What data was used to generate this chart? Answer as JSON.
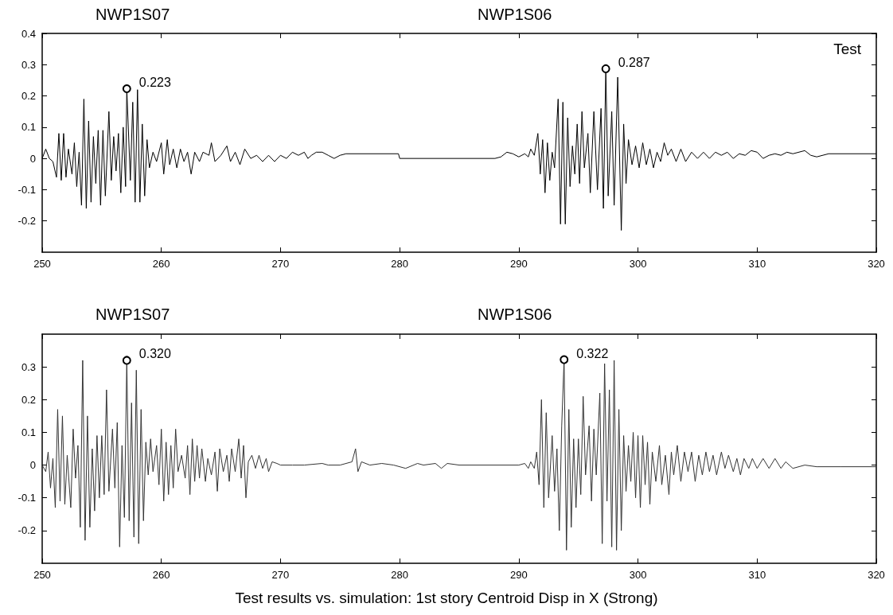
{
  "chart_data": [
    {
      "type": "line",
      "annotations": [
        "NWP1S07",
        "NWP1S06",
        "Test",
        {
          "text": "0.223",
          "x": 257.1,
          "y": 0.223
        },
        {
          "text": "0.287",
          "x": 297.3,
          "y": 0.287
        }
      ],
      "xlim": [
        250,
        320
      ],
      "xticks": [
        250,
        260,
        270,
        280,
        290,
        300,
        310,
        320
      ],
      "ylim": [
        -0.3,
        0.4
      ],
      "yticks": [
        -0.2,
        -0.1,
        0,
        0.1,
        0.2,
        0.3,
        0.4
      ],
      "grid": false,
      "marker": "none",
      "line_style": "solid",
      "series": [
        {
          "color": "#000000",
          "x": [
            250,
            250.3,
            250.6,
            250.9,
            251.2,
            251.4,
            251.6,
            251.8,
            252.0,
            252.2,
            252.5,
            252.7,
            252.9,
            253.1,
            253.3,
            253.5,
            253.7,
            253.9,
            254.1,
            254.3,
            254.5,
            254.7,
            254.9,
            255.1,
            255.3,
            255.6,
            255.8,
            256.0,
            256.2,
            256.4,
            256.6,
            256.8,
            257.0,
            257.1,
            257.4,
            257.6,
            257.8,
            258.0,
            258.2,
            258.4,
            258.6,
            258.8,
            259.0,
            259.3,
            259.6,
            260.0,
            260.2,
            260.5,
            260.7,
            261.0,
            261.3,
            261.6,
            261.9,
            262.2,
            262.5,
            262.8,
            263.2,
            263.5,
            264.0,
            264.2,
            264.5,
            265.0,
            265.5,
            265.8,
            266.2,
            266.6,
            267.0,
            267.5,
            268.0,
            268.5,
            269.0,
            269.5,
            270.0,
            270.5,
            271.0,
            271.5,
            272.0,
            272.3,
            272.6,
            273.0,
            273.5,
            274.0,
            274.5,
            275.0,
            275.5,
            279.9,
            280,
            288,
            288.5,
            289.0,
            289.5,
            290.0,
            290.5,
            290.8,
            291.0,
            291.3,
            291.6,
            291.8,
            292.0,
            292.2,
            292.4,
            292.6,
            292.8,
            293.0,
            293.3,
            293.5,
            293.7,
            293.9,
            294.1,
            294.3,
            294.5,
            294.7,
            294.9,
            295.1,
            295.3,
            295.5,
            295.8,
            296.0,
            296.3,
            296.6,
            296.9,
            297.1,
            297.3,
            297.5,
            297.8,
            298.0,
            298.3,
            298.6,
            298.8,
            299.0,
            299.2,
            299.5,
            299.8,
            300.1,
            300.4,
            300.7,
            301.0,
            301.3,
            301.6,
            301.9,
            302.2,
            302.5,
            302.8,
            303.2,
            303.6,
            304.0,
            304.5,
            305.0,
            305.5,
            306.0,
            306.5,
            307.0,
            307.5,
            308.0,
            308.5,
            309.0,
            309.5,
            310.0,
            310.5,
            311.0,
            311.5,
            312.0,
            312.5,
            313.0,
            314.0,
            314.5,
            315.0,
            316.0,
            320.0
          ],
          "values": [
            0,
            0.03,
            0,
            -0.01,
            -0.06,
            0.08,
            -0.07,
            0.08,
            -0.06,
            0.03,
            -0.05,
            0.05,
            -0.09,
            0.02,
            -0.15,
            0.19,
            -0.16,
            0.12,
            -0.14,
            0.07,
            -0.08,
            0.09,
            -0.15,
            0.09,
            -0.12,
            0.15,
            -0.07,
            0.07,
            -0.04,
            0.08,
            -0.11,
            0.1,
            -0.09,
            0.223,
            -0.07,
            0.18,
            -0.14,
            0.22,
            -0.14,
            0.11,
            -0.12,
            0.06,
            -0.03,
            0.02,
            -0.01,
            0.05,
            -0.05,
            0.06,
            -0.02,
            0.03,
            -0.03,
            0.03,
            -0.01,
            0.02,
            -0.05,
            0.02,
            -0.01,
            0.02,
            0.01,
            0.05,
            -0.01,
            0.01,
            0.04,
            -0.01,
            0.02,
            -0.02,
            0.03,
            0,
            0.01,
            -0.01,
            0.01,
            -0.01,
            0.01,
            0,
            0.02,
            0.01,
            0.02,
            0,
            0.01,
            0.02,
            0.02,
            0.01,
            0,
            0.01,
            0.015,
            0.015,
            0,
            0,
            0.005,
            0.02,
            0.015,
            0.005,
            0.015,
            0.005,
            0.03,
            0.01,
            0.08,
            -0.05,
            0.06,
            -0.11,
            0.05,
            -0.07,
            0.02,
            -0.03,
            0.19,
            -0.21,
            0.18,
            -0.21,
            0.13,
            -0.09,
            0.04,
            -0.05,
            0.11,
            -0.08,
            0.15,
            -0.03,
            0.08,
            -0.11,
            0.15,
            -0.1,
            0.16,
            -0.16,
            0.287,
            -0.12,
            0.15,
            -0.15,
            0.26,
            -0.23,
            0.11,
            -0.08,
            0.06,
            -0.02,
            0.04,
            -0.03,
            0.05,
            -0.02,
            0.03,
            -0.03,
            0.02,
            -0.01,
            0.05,
            0.01,
            0.03,
            -0.01,
            0.03,
            -0.01,
            0.02,
            0,
            0.02,
            0,
            0.02,
            0.01,
            0.02,
            0,
            0.015,
            0.01,
            0.025,
            0.02,
            0,
            0.01,
            0.015,
            0.01,
            0.02,
            0.015,
            0.025,
            0.01,
            0.005,
            0.015,
            0.015
          ]
        }
      ]
    },
    {
      "type": "line",
      "annotations": [
        "NWP1S07",
        "NWP1S06",
        "Test results vs. simulation: 1st story Centroid Disp in X (Strong)",
        {
          "text": "0.320",
          "x": 257.1,
          "y": 0.32
        },
        {
          "text": "0.322",
          "x": 293.8,
          "y": 0.322
        }
      ],
      "xlim": [
        250,
        320
      ],
      "xticks": [
        250,
        260,
        270,
        280,
        290,
        300,
        310,
        320
      ],
      "ylim": [
        -0.3,
        0.4
      ],
      "yticks": [
        -0.2,
        -0.1,
        0,
        0.1,
        0.2,
        0.3
      ],
      "grid": false,
      "marker": "none",
      "line_style": "solid",
      "series": [
        {
          "color": "#333333",
          "x": [
            250,
            250.3,
            250.5,
            250.7,
            250.9,
            251.1,
            251.3,
            251.5,
            251.7,
            251.9,
            252.1,
            252.4,
            252.6,
            252.8,
            253.0,
            253.2,
            253.4,
            253.6,
            253.8,
            254.0,
            254.2,
            254.4,
            254.6,
            254.8,
            255.0,
            255.2,
            255.4,
            255.6,
            255.9,
            256.1,
            256.3,
            256.5,
            256.7,
            256.9,
            257.1,
            257.3,
            257.5,
            257.7,
            257.9,
            258.1,
            258.3,
            258.5,
            258.7,
            258.9,
            259.1,
            259.3,
            259.6,
            259.8,
            260.0,
            260.2,
            260.4,
            260.6,
            260.8,
            261.0,
            261.2,
            261.4,
            261.7,
            262.0,
            262.2,
            262.4,
            262.6,
            262.8,
            263.0,
            263.2,
            263.4,
            263.7,
            263.9,
            264.2,
            264.5,
            264.7,
            264.9,
            265.2,
            265.5,
            265.7,
            265.9,
            266.2,
            266.5,
            266.7,
            266.9,
            267.1,
            267.3,
            267.6,
            267.9,
            268.2,
            268.5,
            268.8,
            269.0,
            269.3,
            269.7,
            270.0,
            271.0,
            272.0,
            273.5,
            274.0,
            275.0,
            276.0,
            276.3,
            276.5,
            276.8,
            277.5,
            278.5,
            279.5,
            280.5,
            281.5,
            282.0,
            283.0,
            283.5,
            284.0,
            285.0,
            290.0,
            290.5,
            290.8,
            291.0,
            291.3,
            291.5,
            291.7,
            291.9,
            292.1,
            292.3,
            292.5,
            292.8,
            293.0,
            293.2,
            293.4,
            293.6,
            293.8,
            294.0,
            294.2,
            294.4,
            294.6,
            294.8,
            295.0,
            295.2,
            295.4,
            295.6,
            295.9,
            296.1,
            296.3,
            296.5,
            296.8,
            297.0,
            297.2,
            297.4,
            297.6,
            297.8,
            298.0,
            298.2,
            298.4,
            298.6,
            298.8,
            299.0,
            299.2,
            299.4,
            299.6,
            299.8,
            300.0,
            300.2,
            300.4,
            300.6,
            300.8,
            301.0,
            301.2,
            301.5,
            301.8,
            302.0,
            302.3,
            302.6,
            302.8,
            303.0,
            303.3,
            303.6,
            303.9,
            304.2,
            304.5,
            304.8,
            305.1,
            305.4,
            305.7,
            306.0,
            306.3,
            306.6,
            307.0,
            307.3,
            307.6,
            308.0,
            308.3,
            308.6,
            308.9,
            309.3,
            309.6,
            310.0,
            310.5,
            311.0,
            311.5,
            312.0,
            312.4,
            313.0,
            314.0,
            315.0,
            317.0,
            320.0
          ],
          "values": [
            0,
            -0.02,
            0.04,
            -0.07,
            0.02,
            -0.13,
            0.17,
            -0.11,
            0.15,
            -0.12,
            0.03,
            -0.13,
            0.11,
            -0.04,
            0.06,
            -0.19,
            0.32,
            -0.23,
            0.15,
            -0.19,
            0.05,
            -0.14,
            0.09,
            -0.1,
            0.09,
            -0.09,
            0.23,
            -0.08,
            0.11,
            -0.07,
            0.13,
            -0.25,
            0.06,
            -0.16,
            0.32,
            -0.17,
            0.19,
            -0.22,
            0.29,
            -0.24,
            0.17,
            -0.17,
            0.07,
            -0.03,
            0.08,
            -0.02,
            0.06,
            -0.06,
            0.11,
            -0.11,
            0.07,
            -0.09,
            0.06,
            -0.07,
            0.11,
            -0.02,
            0.03,
            -0.04,
            0.06,
            -0.09,
            0.08,
            -0.05,
            0.06,
            -0.04,
            0.05,
            -0.05,
            0.02,
            -0.03,
            0.04,
            -0.08,
            0.05,
            -0.02,
            0.03,
            -0.05,
            0.05,
            -0.02,
            0.08,
            -0.04,
            0.06,
            -0.1,
            0.01,
            0.03,
            -0.01,
            0.03,
            -0.01,
            0.02,
            -0.02,
            0.01,
            0.005,
            0,
            0,
            0,
            0.005,
            0,
            0,
            0.01,
            0.05,
            -0.02,
            0.01,
            0,
            0.005,
            0,
            -0.01,
            0.005,
            0,
            0.005,
            -0.01,
            0.005,
            0,
            0,
            0.005,
            -0.01,
            0.01,
            -0.01,
            0.04,
            -0.06,
            0.2,
            -0.13,
            0.16,
            -0.1,
            0.09,
            -0.08,
            0.05,
            -0.2,
            0.12,
            0.322,
            -0.26,
            0.17,
            -0.19,
            0.08,
            -0.13,
            0.08,
            -0.09,
            0.21,
            -0.03,
            0.12,
            -0.11,
            0.11,
            -0.03,
            0.22,
            -0.24,
            0.31,
            -0.11,
            0.23,
            -0.25,
            0.32,
            -0.26,
            0.17,
            -0.2,
            0.09,
            -0.08,
            0.06,
            -0.05,
            0.1,
            -0.1,
            0.09,
            -0.13,
            0.09,
            -0.06,
            0.07,
            -0.12,
            0.04,
            -0.05,
            0.06,
            -0.06,
            0.03,
            -0.09,
            0.04,
            -0.03,
            0.06,
            -0.05,
            0.04,
            -0.02,
            0.04,
            -0.05,
            0.03,
            -0.03,
            0.04,
            -0.02,
            0.03,
            -0.03,
            0.04,
            -0.01,
            0.03,
            -0.02,
            0.02,
            -0.03,
            0.02,
            -0.01,
            0.02,
            -0.01,
            0.02,
            -0.01,
            0.02,
            -0.01,
            0.01,
            -0.01,
            0,
            -0.005,
            -0.005,
            -0.005
          ]
        }
      ]
    }
  ]
}
